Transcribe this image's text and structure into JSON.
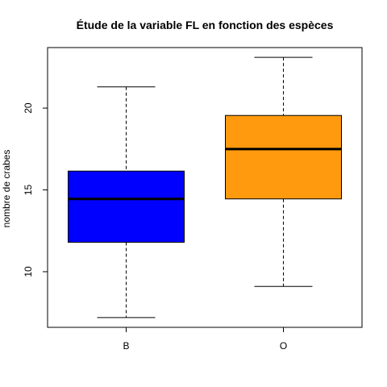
{
  "chart_data": {
    "type": "boxplot",
    "title": "Étude de la variable FL en fonction des espèces",
    "xlabel": "",
    "ylabel": "nombre de crabes",
    "categories": [
      "B",
      "O"
    ],
    "boxes": [
      {
        "category": "B",
        "min": 7.2,
        "q1": 11.8,
        "median": 14.45,
        "q3": 16.15,
        "max": 21.3,
        "color": "#0000ff"
      },
      {
        "category": "O",
        "min": 9.1,
        "q1": 14.45,
        "median": 17.5,
        "q3": 19.55,
        "max": 23.1,
        "color": "#ff9a0e"
      }
    ],
    "ylim": [
      6.6,
      23.7
    ],
    "yticks": [
      10,
      15,
      20
    ],
    "grid": false,
    "legend": "none"
  }
}
